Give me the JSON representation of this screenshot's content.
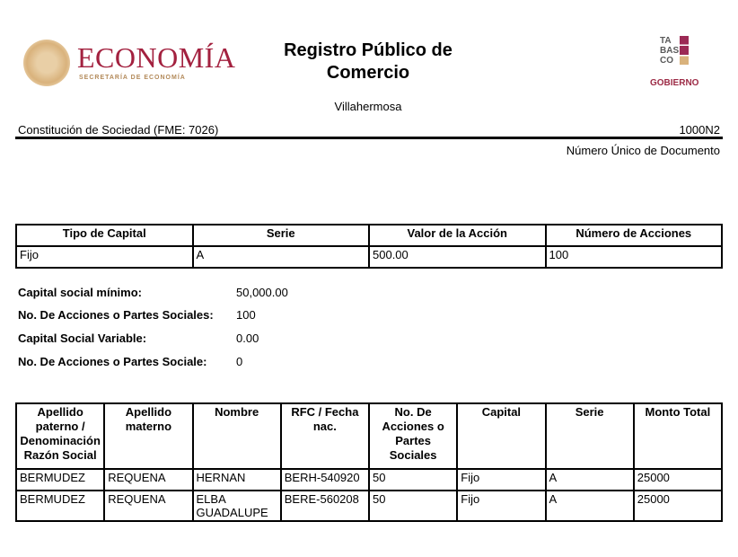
{
  "header": {
    "logo_left": "ECONOMÍA",
    "logo_left_sub": "SECRETARÍA DE ECONOMÍA",
    "title": "Registro Público de Comercio",
    "city": "Villahermosa",
    "logo_right_lines": [
      "TA",
      "BAS",
      "CO"
    ],
    "logo_right_gob": "GOBIERNO"
  },
  "doc": {
    "type": "Constitución de Sociedad (FME: 7026)",
    "code": "1000N2",
    "code_label": "Número Único de Documento"
  },
  "capital_table": {
    "headers": [
      "Tipo de Capital",
      "Serie",
      "Valor de la Acción",
      "Número de Acciones"
    ],
    "rows": [
      [
        "Fijo",
        "A",
        "500.00",
        "100"
      ]
    ]
  },
  "info": [
    {
      "label": "Capital social mínimo:",
      "value": "50,000.00"
    },
    {
      "label": "No. De Acciones o Partes Sociales:",
      "value": "100"
    },
    {
      "label": "Capital Social Variable:",
      "value": "0.00"
    },
    {
      "label": "No. De Acciones o Partes Sociale:",
      "value": "0"
    }
  ],
  "socios_table": {
    "headers": [
      "Apellido paterno / Denominación Razón Social",
      "Apellido materno",
      "Nombre",
      "RFC / Fecha nac.",
      "No. De Acciones o Partes Sociales",
      "Capital",
      "Serie",
      "Monto Total"
    ],
    "rows": [
      [
        "BERMUDEZ",
        "REQUENA",
        "HERNAN",
        "BERH-540920",
        "50",
        "Fijo",
        "A",
        "25000"
      ],
      [
        "BERMUDEZ",
        "REQUENA",
        "ELBA GUADALUPE",
        "BERE-560208",
        "50",
        "Fijo",
        "A",
        "25000"
      ]
    ]
  }
}
